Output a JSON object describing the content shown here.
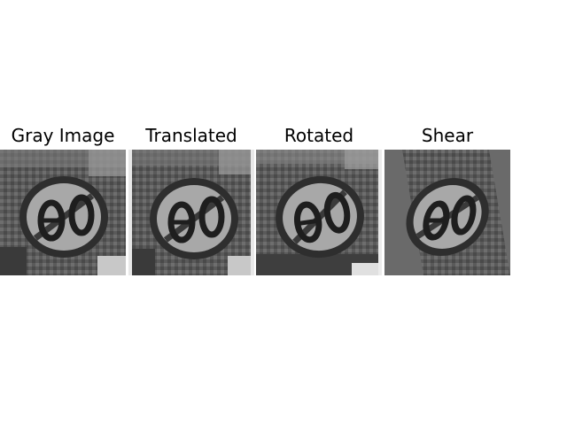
{
  "panels": [
    {
      "title": "Gray Image",
      "transform": "none"
    },
    {
      "title": "Translated",
      "transform": "translate"
    },
    {
      "title": "Rotated",
      "transform": "rotate"
    },
    {
      "title": "Shear",
      "transform": "shear"
    }
  ]
}
